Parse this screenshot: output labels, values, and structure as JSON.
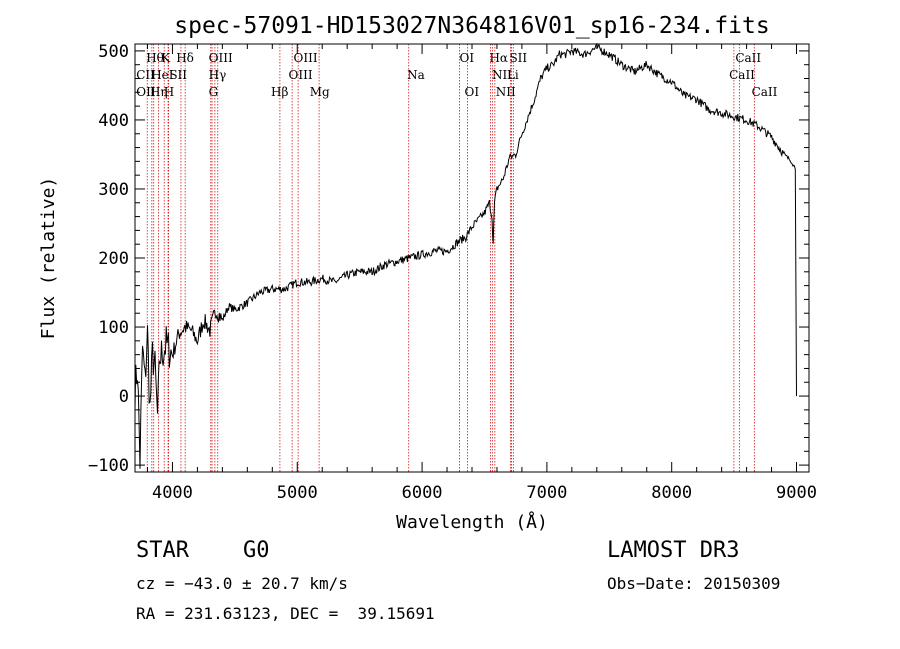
{
  "chart_data": {
    "type": "line",
    "title": "spec-57091-HD153027N364816V01_sp16-234.fits",
    "xlabel": "Wavelength (Å)",
    "ylabel": "Flux (relative)",
    "xlim": [
      3700,
      9100
    ],
    "ylim": [
      -110,
      510
    ],
    "xticks": [
      4000,
      5000,
      6000,
      7000,
      8000,
      9000
    ],
    "yticks": [
      -100,
      0,
      100,
      200,
      300,
      400,
      500
    ],
    "grid": false,
    "series": [
      {
        "name": "flux",
        "x": [
          3700,
          3720,
          3740,
          3760,
          3780,
          3800,
          3820,
          3840,
          3860,
          3880,
          3900,
          3950,
          4000,
          4050,
          4100,
          4150,
          4200,
          4250,
          4300,
          4350,
          4400,
          4450,
          4500,
          4600,
          4700,
          4800,
          4900,
          5000,
          5100,
          5200,
          5300,
          5400,
          5500,
          5600,
          5700,
          5800,
          5900,
          6000,
          6100,
          6200,
          6300,
          6350,
          6400,
          6450,
          6500,
          6540,
          6560,
          6570,
          6580,
          6600,
          6650,
          6700,
          6750,
          6800,
          6850,
          6900,
          6950,
          7000,
          7050,
          7100,
          7150,
          7200,
          7300,
          7400,
          7500,
          7600,
          7700,
          7800,
          7900,
          8000,
          8100,
          8200,
          8300,
          8400,
          8500,
          8600,
          8700,
          8800,
          8900,
          8960,
          8990,
          9000
        ],
        "y": [
          10,
          40,
          -95,
          70,
          20,
          90,
          -20,
          60,
          40,
          -30,
          55,
          75,
          60,
          90,
          100,
          95,
          80,
          110,
          95,
          125,
          110,
          130,
          125,
          135,
          150,
          155,
          155,
          165,
          165,
          170,
          165,
          175,
          180,
          180,
          190,
          195,
          200,
          205,
          210,
          210,
          225,
          230,
          245,
          255,
          265,
          280,
          260,
          220,
          280,
          300,
          315,
          345,
          350,
          380,
          405,
          430,
          460,
          475,
          480,
          495,
          495,
          500,
          495,
          505,
          495,
          480,
          470,
          480,
          465,
          455,
          435,
          430,
          415,
          410,
          405,
          400,
          390,
          375,
          350,
          340,
          330,
          0
        ]
      }
    ],
    "lines": [
      {
        "label": "Hθ",
        "x": 3798
      },
      {
        "label": "Hη",
        "x": 3835
      },
      {
        "label": "CII",
        "x": 3850
      },
      {
        "label": "Hε",
        "x": 3889
      },
      {
        "label": "K",
        "x": 3934
      },
      {
        "label": "HeI",
        "x": 3965
      },
      {
        "label": "H",
        "x": 3969
      },
      {
        "label": "SII",
        "x": 4068
      },
      {
        "label": "Hδ",
        "x": 4102
      },
      {
        "label": "OIII",
        "x": 4317
      },
      {
        "label": "G",
        "x": 4307
      },
      {
        "label": "Hγ",
        "x": 4340
      },
      {
        "label": "OIII",
        "x": 4363
      },
      {
        "label": "Hβ",
        "x": 4861
      },
      {
        "label": "OIII",
        "x": 4959
      },
      {
        "label": "OIII",
        "x": 5007
      },
      {
        "label": "Mg",
        "x": 5175
      },
      {
        "label": "Na",
        "x": 5893
      },
      {
        "label": "OI",
        "x": 6300
      },
      {
        "label": "OI",
        "x": 6364
      },
      {
        "label": "Hα",
        "x": 6563
      },
      {
        "label": "NII",
        "x": 6548
      },
      {
        "label": "NII",
        "x": 6583
      },
      {
        "label": "Li",
        "x": 6708
      },
      {
        "label": "SII",
        "x": 6716
      },
      {
        "label": "SII",
        "x": 6731
      },
      {
        "label": "CaII",
        "x": 8498
      },
      {
        "label": "CaII",
        "x": 8542
      },
      {
        "label": "CaII",
        "x": 8662
      }
    ],
    "line_labels": [
      {
        "text": "Hθ",
        "x": 3790,
        "row": 0
      },
      {
        "text": "K",
        "x": 3910,
        "row": 0
      },
      {
        "text": "Hδ",
        "x": 4030,
        "row": 0
      },
      {
        "text": "OIII",
        "x": 4290,
        "row": 0
      },
      {
        "text": "OIII",
        "x": 4970,
        "row": 0
      },
      {
        "text": "OI",
        "x": 6300,
        "row": 0
      },
      {
        "text": "Hα",
        "x": 6540,
        "row": 0
      },
      {
        "text": "SII",
        "x": 6700,
        "row": 0
      },
      {
        "text": "CaII",
        "x": 8510,
        "row": 0
      },
      {
        "text": "CII",
        "x": 3710,
        "row": 1
      },
      {
        "text": "HeI",
        "x": 3830,
        "row": 1
      },
      {
        "text": "SII",
        "x": 3975,
        "row": 1
      },
      {
        "text": "Hγ",
        "x": 4290,
        "row": 1
      },
      {
        "text": "OIII",
        "x": 4930,
        "row": 1
      },
      {
        "text": "Na",
        "x": 5880,
        "row": 1
      },
      {
        "text": "NII",
        "x": 6560,
        "row": 1
      },
      {
        "text": "Li",
        "x": 6680,
        "row": 1
      },
      {
        "text": "CaII",
        "x": 8460,
        "row": 1
      },
      {
        "text": "OII",
        "x": 3710,
        "row": 2
      },
      {
        "text": "Hη",
        "x": 3820,
        "row": 2
      },
      {
        "text": "H",
        "x": 3930,
        "row": 2
      },
      {
        "text": "G",
        "x": 4290,
        "row": 2
      },
      {
        "text": "Hβ",
        "x": 4790,
        "row": 2
      },
      {
        "text": "Mg",
        "x": 5100,
        "row": 2
      },
      {
        "text": "OI",
        "x": 6340,
        "row": 2
      },
      {
        "text": "NII",
        "x": 6590,
        "row": 2
      },
      {
        "text": "CaII",
        "x": 8640,
        "row": 2
      }
    ],
    "line_color": "#d11a1a"
  },
  "info": {
    "class": "STAR",
    "subclass": "G0",
    "survey": "LAMOST DR3",
    "cz": "cz = −43.0 ± 20.7 km/s",
    "obs_date": "Obs−Date: 20150309",
    "coords": "RA = 231.63123, DEC =  39.15691"
  }
}
